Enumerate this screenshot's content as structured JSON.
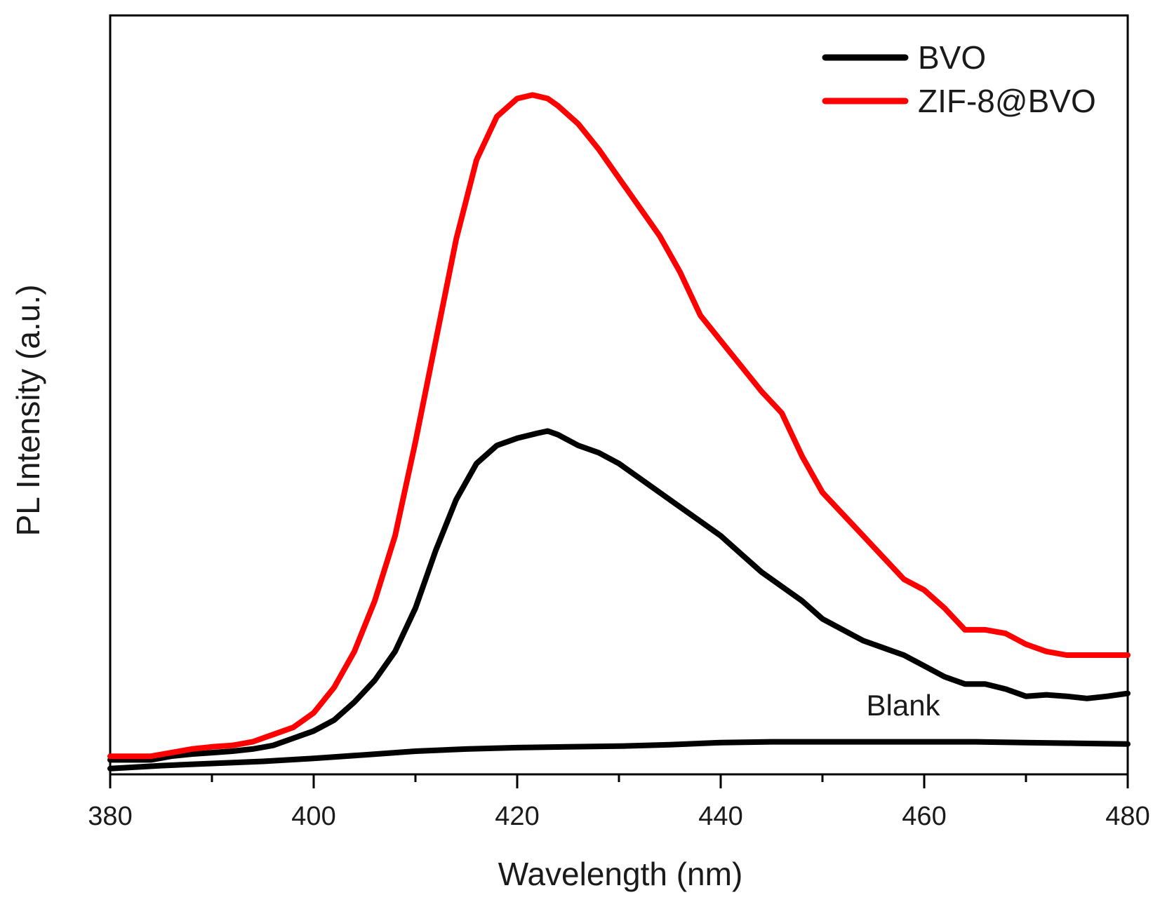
{
  "chart_data": {
    "type": "line",
    "title": "",
    "xlabel": "Wavelength (nm)",
    "ylabel": "PL Intensity (a.u.)",
    "xlim": [
      380,
      480
    ],
    "ylim": [
      0,
      1.05
    ],
    "x_ticks": [
      380,
      400,
      420,
      440,
      460,
      480
    ],
    "x_minor_ticks": [
      390,
      410,
      430,
      450,
      470
    ],
    "y_ticks_shown": false,
    "grid": false,
    "legend_position": "top-right",
    "annotations": [
      {
        "text": "Blank",
        "x": 455,
        "y": 0.095
      }
    ],
    "colors": {
      "BVO": "#000000",
      "ZIF-8@BVO": "#ff0000",
      "Blank": "#000000",
      "axes": "#000000"
    },
    "series": [
      {
        "name": "BVO",
        "in_legend": true,
        "x": [
          380,
          382,
          384,
          386,
          388,
          390,
          392,
          394,
          396,
          398,
          400,
          402,
          404,
          406,
          408,
          410,
          412,
          414,
          416,
          418,
          420,
          422,
          423,
          424,
          426,
          428,
          430,
          432,
          434,
          436,
          438,
          440,
          442,
          444,
          446,
          448,
          450,
          452,
          454,
          456,
          458,
          460,
          462,
          464,
          466,
          468,
          470,
          472,
          474,
          476,
          478,
          480
        ],
        "values": [
          0.02,
          0.02,
          0.02,
          0.025,
          0.028,
          0.03,
          0.032,
          0.035,
          0.04,
          0.05,
          0.06,
          0.075,
          0.1,
          0.13,
          0.17,
          0.23,
          0.31,
          0.38,
          0.43,
          0.455,
          0.465,
          0.472,
          0.475,
          0.47,
          0.455,
          0.445,
          0.43,
          0.41,
          0.39,
          0.37,
          0.35,
          0.33,
          0.305,
          0.28,
          0.26,
          0.24,
          0.215,
          0.2,
          0.185,
          0.175,
          0.165,
          0.15,
          0.135,
          0.125,
          0.125,
          0.118,
          0.108,
          0.11,
          0.108,
          0.105,
          0.108,
          0.112
        ]
      },
      {
        "name": "ZIF-8@BVO",
        "in_legend": true,
        "x": [
          380,
          382,
          384,
          386,
          388,
          390,
          392,
          394,
          396,
          398,
          400,
          402,
          404,
          406,
          408,
          410,
          412,
          414,
          416,
          418,
          420,
          421.5,
          423,
          424,
          426,
          428,
          430,
          432,
          434,
          436,
          438,
          440,
          442,
          444,
          446,
          448,
          450,
          452,
          454,
          456,
          458,
          460,
          462,
          464,
          466,
          468,
          470,
          472,
          474,
          476,
          478,
          480
        ],
        "values": [
          0.025,
          0.025,
          0.025,
          0.03,
          0.035,
          0.038,
          0.04,
          0.045,
          0.055,
          0.065,
          0.085,
          0.12,
          0.17,
          0.24,
          0.33,
          0.46,
          0.6,
          0.74,
          0.85,
          0.91,
          0.935,
          0.94,
          0.935,
          0.925,
          0.9,
          0.865,
          0.825,
          0.785,
          0.745,
          0.695,
          0.635,
          0.6,
          0.565,
          0.53,
          0.5,
          0.44,
          0.39,
          0.36,
          0.33,
          0.3,
          0.27,
          0.255,
          0.23,
          0.2,
          0.2,
          0.195,
          0.18,
          0.17,
          0.165,
          0.165,
          0.165,
          0.165
        ]
      },
      {
        "name": "Blank",
        "in_legend": false,
        "x": [
          380,
          385,
          390,
          395,
          400,
          405,
          410,
          415,
          420,
          425,
          430,
          435,
          440,
          445,
          450,
          455,
          460,
          465,
          470,
          475,
          480
        ],
        "values": [
          0.008,
          0.012,
          0.015,
          0.018,
          0.022,
          0.027,
          0.032,
          0.035,
          0.037,
          0.038,
          0.039,
          0.041,
          0.044,
          0.045,
          0.045,
          0.045,
          0.045,
          0.045,
          0.044,
          0.043,
          0.042
        ]
      }
    ]
  }
}
